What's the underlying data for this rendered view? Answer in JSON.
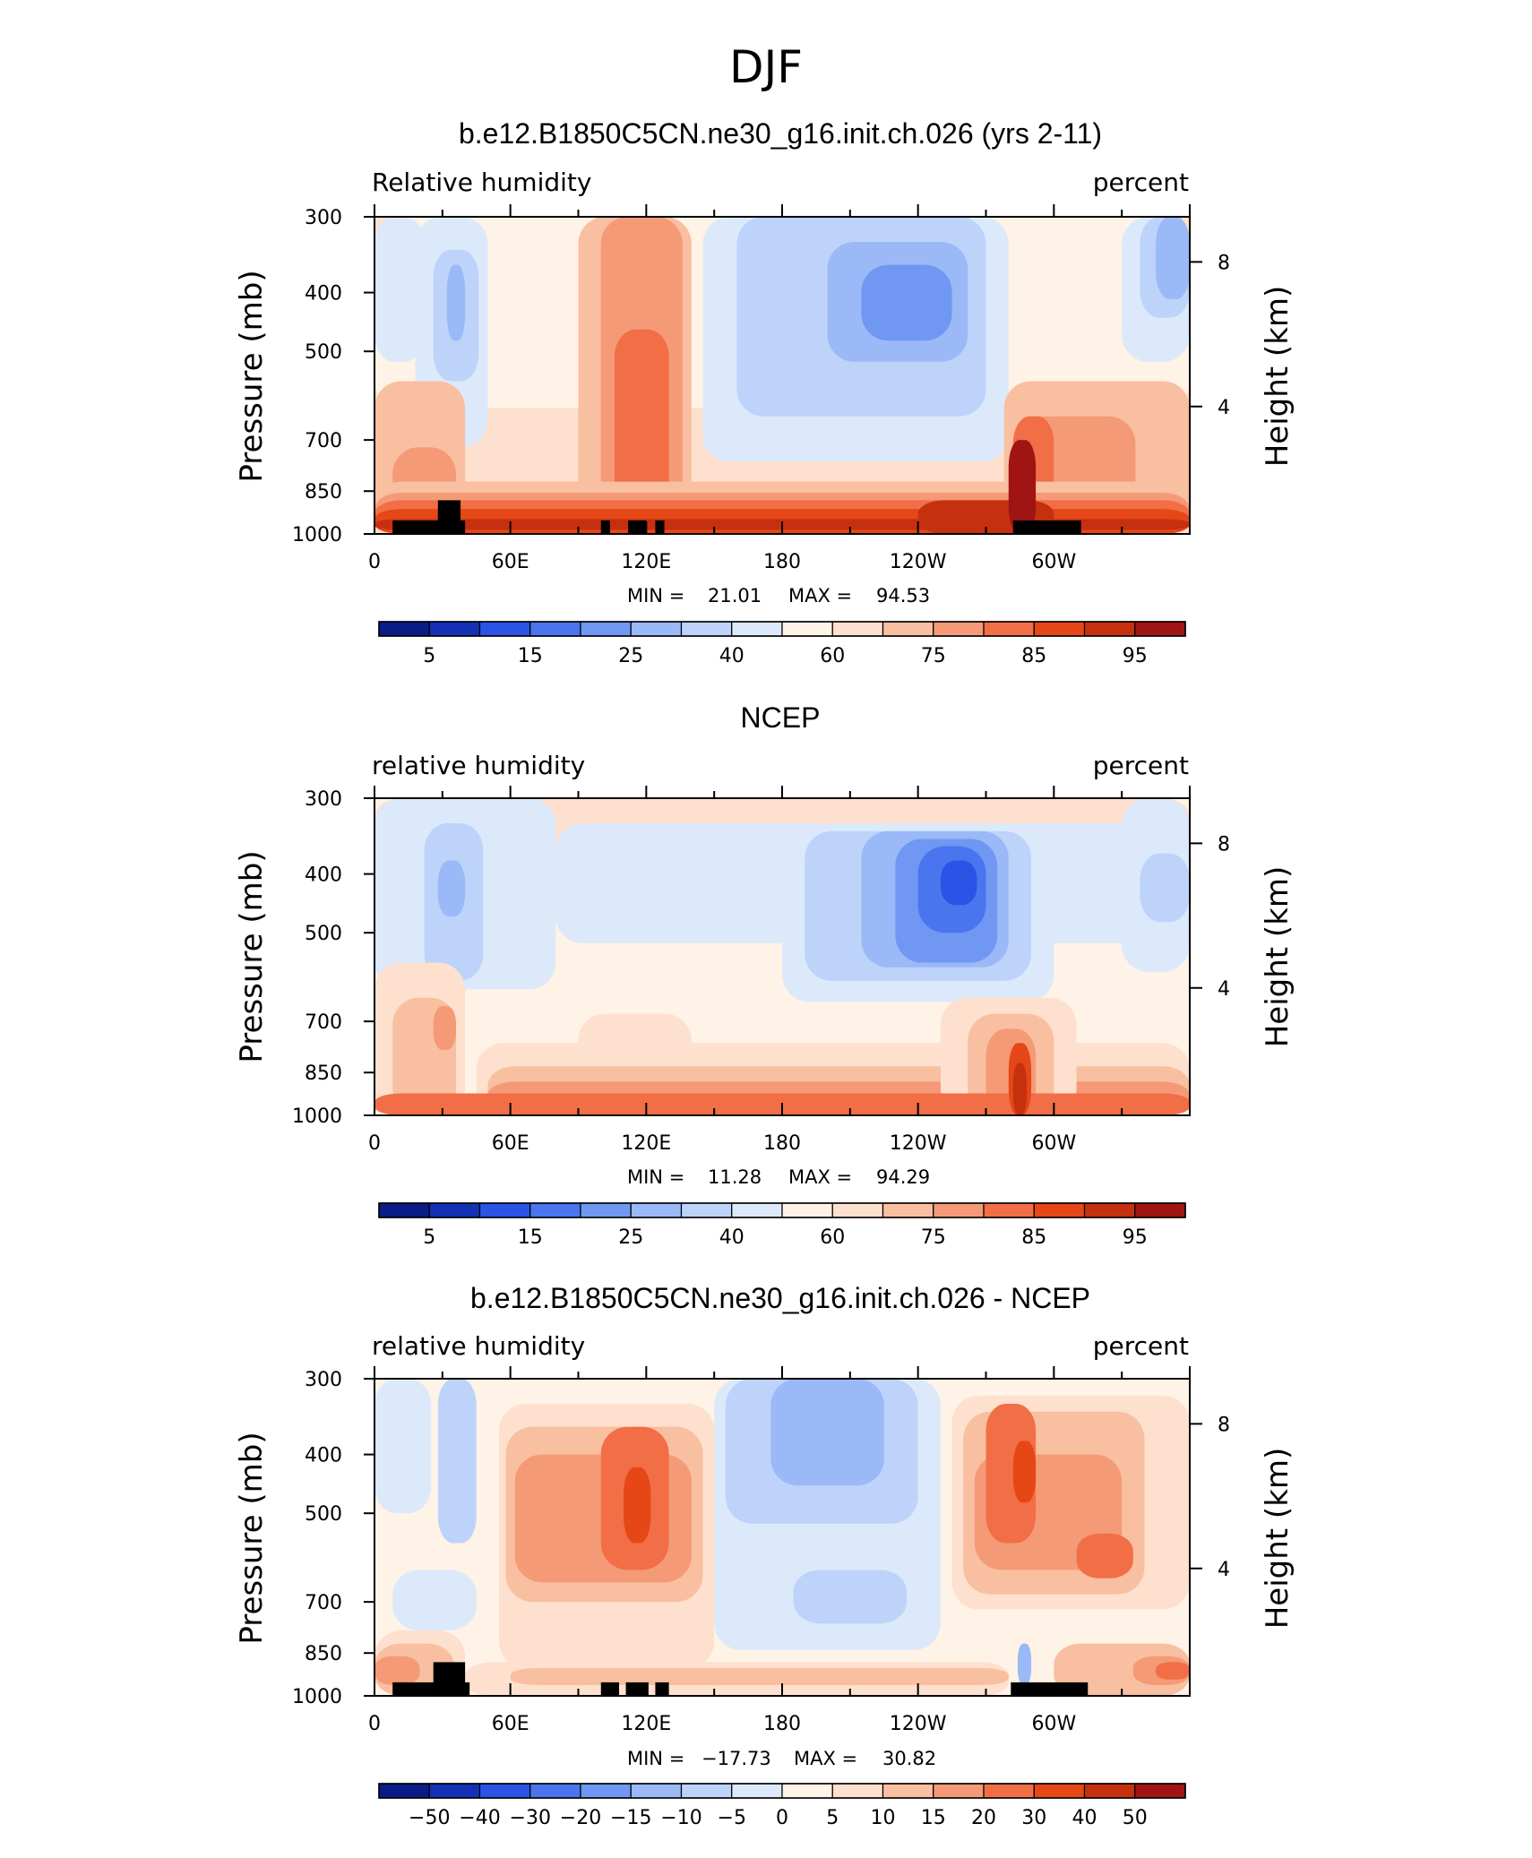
{
  "figure": {
    "season": "DJF"
  },
  "colors": {
    "pos9": "#6b0000",
    "pos8": "#a11414",
    "pos7": "#c5300f",
    "pos6": "#e64717",
    "pos5": "#f26e46",
    "pos4": "#f59a77",
    "pos3": "#f9bfa1",
    "pos2": "#fde0cd",
    "pos1": "#fff2e6",
    "neg1": "#dce9fb",
    "neg2": "#bdd3fa",
    "neg3": "#9ab9f6",
    "neg4": "#7097f2",
    "neg5": "#4a75ee",
    "neg6": "#2b53e6",
    "neg7": "#1431b5",
    "neg8": "#0a1c86",
    "neg9": "#00005a",
    "topo": "#000000"
  },
  "chart_data": [
    {
      "type": "heatmap",
      "title": "b.e12.B1850C5CN.ne30_g16.init.ch.026 (yrs 2-11)",
      "left_label": "Relative humidity",
      "right_label": "percent",
      "ylabel": "Pressure (mb)",
      "y2label": "Height (km)",
      "x_ticks": [
        "0",
        "60E",
        "120E",
        "180",
        "120W",
        "60W"
      ],
      "y_ticks": [
        "300",
        "400",
        "500",
        "700",
        "850",
        "1000"
      ],
      "y2_ticks": [
        "8",
        "4"
      ],
      "min_label": "MIN =",
      "min_value": "21.01",
      "max_label": "MAX =",
      "max_value": "94.53",
      "colorbar_labels": [
        "5",
        "15",
        "25",
        "40",
        "60",
        "75",
        "85",
        "95"
      ],
      "colorbar_colors": [
        "neg8",
        "neg7",
        "neg6",
        "neg5",
        "neg4",
        "neg3",
        "neg2",
        "neg1",
        "pos1",
        "pos2",
        "pos3",
        "pos4",
        "pos5",
        "pos6",
        "pos7",
        "pos8"
      ],
      "dominant_fill": "pos2",
      "features": [
        {
          "fill": "pos1",
          "lon": [
            0,
            360
          ],
          "p": [
            300,
            620
          ]
        },
        {
          "fill": "neg1",
          "lon": [
            0,
            22
          ],
          "p": [
            300,
            520
          ]
        },
        {
          "fill": "neg1",
          "lon": [
            18,
            50
          ],
          "p": [
            300,
            720
          ]
        },
        {
          "fill": "neg2",
          "lon": [
            26,
            46
          ],
          "p": [
            340,
            560
          ]
        },
        {
          "fill": "neg3",
          "lon": [
            32,
            40
          ],
          "p": [
            360,
            480
          ]
        },
        {
          "fill": "neg1",
          "lon": [
            145,
            280
          ],
          "p": [
            300,
            760
          ]
        },
        {
          "fill": "neg2",
          "lon": [
            160,
            270
          ],
          "p": [
            300,
            640
          ]
        },
        {
          "fill": "neg3",
          "lon": [
            200,
            262
          ],
          "p": [
            330,
            520
          ]
        },
        {
          "fill": "neg4",
          "lon": [
            215,
            255
          ],
          "p": [
            360,
            480
          ]
        },
        {
          "fill": "neg1",
          "lon": [
            330,
            360
          ],
          "p": [
            300,
            520
          ]
        },
        {
          "fill": "neg2",
          "lon": [
            338,
            360
          ],
          "p": [
            300,
            440
          ]
        },
        {
          "fill": "neg3",
          "lon": [
            345,
            360
          ],
          "p": [
            300,
            410
          ]
        },
        {
          "fill": "pos3",
          "lon": [
            0,
            40
          ],
          "p": [
            560,
            1000
          ]
        },
        {
          "fill": "pos4",
          "lon": [
            8,
            36
          ],
          "p": [
            720,
            1000
          ]
        },
        {
          "fill": "pos3",
          "lon": [
            90,
            140
          ],
          "p": [
            300,
            1000
          ]
        },
        {
          "fill": "pos4",
          "lon": [
            100,
            136
          ],
          "p": [
            300,
            1000
          ]
        },
        {
          "fill": "pos5",
          "lon": [
            106,
            130
          ],
          "p": [
            460,
            1000
          ]
        },
        {
          "fill": "pos3",
          "lon": [
            278,
            360
          ],
          "p": [
            560,
            1000
          ]
        },
        {
          "fill": "pos4",
          "lon": [
            282,
            336
          ],
          "p": [
            640,
            1000
          ]
        },
        {
          "fill": "pos5",
          "lon": [
            282,
            300
          ],
          "p": [
            640,
            1000
          ]
        },
        {
          "fill": "pos3",
          "lon": [
            0,
            360
          ],
          "p": [
            820,
            1000
          ]
        },
        {
          "fill": "pos4",
          "lon": [
            0,
            360
          ],
          "p": [
            855,
            1000
          ]
        },
        {
          "fill": "pos5",
          "lon": [
            0,
            360
          ],
          "p": [
            880,
            1000
          ]
        },
        {
          "fill": "pos6",
          "lon": [
            0,
            360
          ],
          "p": [
            910,
            1000
          ]
        },
        {
          "fill": "pos7",
          "lon": [
            240,
            300
          ],
          "p": [
            880,
            1000
          ]
        },
        {
          "fill": "pos7",
          "lon": [
            0,
            360
          ],
          "p": [
            945,
            985
          ]
        },
        {
          "fill": "pos8",
          "lon": [
            280,
            292
          ],
          "p": [
            700,
            1000
          ]
        }
      ],
      "topography": [
        {
          "lon": [
            8,
            40
          ],
          "p": [
            950,
            1000
          ]
        },
        {
          "lon": [
            28,
            38
          ],
          "p": [
            880,
            1000
          ]
        },
        {
          "lon": [
            100,
            104
          ],
          "p": [
            950,
            1000
          ]
        },
        {
          "lon": [
            112,
            120
          ],
          "p": [
            950,
            1000
          ]
        },
        {
          "lon": [
            124,
            128
          ],
          "p": [
            950,
            1000
          ]
        },
        {
          "lon": [
            282,
            312
          ],
          "p": [
            950,
            1000
          ]
        }
      ]
    },
    {
      "type": "heatmap",
      "title": "NCEP",
      "left_label": "relative humidity",
      "right_label": "percent",
      "ylabel": "Pressure (mb)",
      "y2label": "Height (km)",
      "x_ticks": [
        "0",
        "60E",
        "120E",
        "180",
        "120W",
        "60W"
      ],
      "y_ticks": [
        "300",
        "400",
        "500",
        "700",
        "850",
        "1000"
      ],
      "y2_ticks": [
        "8",
        "4"
      ],
      "min_label": "MIN =",
      "min_value": "11.28",
      "max_label": "MAX =",
      "max_value": "94.29",
      "colorbar_labels": [
        "5",
        "15",
        "25",
        "40",
        "60",
        "75",
        "85",
        "95"
      ],
      "colorbar_colors": [
        "neg8",
        "neg7",
        "neg6",
        "neg5",
        "neg4",
        "neg3",
        "neg2",
        "neg1",
        "pos1",
        "pos2",
        "pos3",
        "pos4",
        "pos5",
        "pos6",
        "pos7",
        "pos8"
      ],
      "dominant_fill": "pos1",
      "features": [
        {
          "fill": "pos2",
          "lon": [
            0,
            360
          ],
          "p": [
            300,
            360
          ]
        },
        {
          "fill": "neg1",
          "lon": [
            0,
            80
          ],
          "p": [
            300,
            620
          ]
        },
        {
          "fill": "neg2",
          "lon": [
            22,
            48
          ],
          "p": [
            330,
            600
          ]
        },
        {
          "fill": "neg3",
          "lon": [
            28,
            40
          ],
          "p": [
            380,
            470
          ]
        },
        {
          "fill": "neg1",
          "lon": [
            80,
            360
          ],
          "p": [
            330,
            520
          ]
        },
        {
          "fill": "neg1",
          "lon": [
            180,
            300
          ],
          "p": [
            330,
            650
          ]
        },
        {
          "fill": "neg2",
          "lon": [
            190,
            290
          ],
          "p": [
            340,
            600
          ]
        },
        {
          "fill": "neg3",
          "lon": [
            215,
            280
          ],
          "p": [
            340,
            570
          ]
        },
        {
          "fill": "neg4",
          "lon": [
            230,
            275
          ],
          "p": [
            350,
            560
          ]
        },
        {
          "fill": "neg5",
          "lon": [
            240,
            270
          ],
          "p": [
            360,
            500
          ]
        },
        {
          "fill": "neg6",
          "lon": [
            250,
            266
          ],
          "p": [
            380,
            450
          ]
        },
        {
          "fill": "neg1",
          "lon": [
            330,
            360
          ],
          "p": [
            300,
            580
          ]
        },
        {
          "fill": "neg2",
          "lon": [
            338,
            360
          ],
          "p": [
            370,
            480
          ]
        },
        {
          "fill": "pos2",
          "lon": [
            0,
            40
          ],
          "p": [
            560,
            1000
          ]
        },
        {
          "fill": "pos3",
          "lon": [
            8,
            36
          ],
          "p": [
            640,
            1000
          ]
        },
        {
          "fill": "pos4",
          "lon": [
            26,
            36
          ],
          "p": [
            660,
            780
          ]
        },
        {
          "fill": "pos2",
          "lon": [
            45,
            360
          ],
          "p": [
            760,
            1000
          ]
        },
        {
          "fill": "pos2",
          "lon": [
            90,
            140
          ],
          "p": [
            680,
            1000
          ]
        },
        {
          "fill": "pos3",
          "lon": [
            50,
            360
          ],
          "p": [
            830,
            1000
          ]
        },
        {
          "fill": "pos4",
          "lon": [
            50,
            360
          ],
          "p": [
            880,
            1000
          ]
        },
        {
          "fill": "pos2",
          "lon": [
            250,
            310
          ],
          "p": [
            640,
            1000
          ]
        },
        {
          "fill": "pos3",
          "lon": [
            262,
            300
          ],
          "p": [
            680,
            1000
          ]
        },
        {
          "fill": "pos4",
          "lon": [
            270,
            292
          ],
          "p": [
            720,
            1000
          ]
        },
        {
          "fill": "pos5",
          "lon": [
            0,
            360
          ],
          "p": [
            920,
            1000
          ]
        },
        {
          "fill": "pos6",
          "lon": [
            280,
            290
          ],
          "p": [
            760,
            1000
          ]
        },
        {
          "fill": "pos7",
          "lon": [
            282,
            288
          ],
          "p": [
            820,
            1000
          ]
        }
      ],
      "topography": []
    },
    {
      "type": "heatmap",
      "title": "b.e12.B1850C5CN.ne30_g16.init.ch.026 - NCEP",
      "left_label": "relative humidity",
      "right_label": "percent",
      "ylabel": "Pressure (mb)",
      "y2label": "Height (km)",
      "x_ticks": [
        "0",
        "60E",
        "120E",
        "180",
        "120W",
        "60W"
      ],
      "y_ticks": [
        "300",
        "400",
        "500",
        "700",
        "850",
        "1000"
      ],
      "y2_ticks": [
        "8",
        "4"
      ],
      "min_label": "MIN =",
      "min_value": "−17.73",
      "max_label": "MAX =",
      "max_value": "30.82",
      "colorbar_labels": [
        "−50",
        "−40",
        "−30",
        "−20",
        "−15",
        "−10",
        "−5",
        "0",
        "5",
        "10",
        "15",
        "20",
        "30",
        "40",
        "50"
      ],
      "colorbar_colors": [
        "neg8",
        "neg7",
        "neg6",
        "neg5",
        "neg4",
        "neg3",
        "neg2",
        "neg1",
        "pos1",
        "pos2",
        "pos3",
        "pos4",
        "pos5",
        "pos6",
        "pos7",
        "pos8"
      ],
      "dominant_fill": "pos1",
      "features": [
        {
          "fill": "neg1",
          "lon": [
            0,
            25
          ],
          "p": [
            300,
            500
          ]
        },
        {
          "fill": "neg1",
          "lon": [
            8,
            45
          ],
          "p": [
            620,
            780
          ]
        },
        {
          "fill": "neg2",
          "lon": [
            28,
            45
          ],
          "p": [
            300,
            560
          ]
        },
        {
          "fill": "neg1",
          "lon": [
            150,
            250
          ],
          "p": [
            300,
            840
          ]
        },
        {
          "fill": "neg2",
          "lon": [
            155,
            240
          ],
          "p": [
            300,
            520
          ]
        },
        {
          "fill": "neg3",
          "lon": [
            175,
            225
          ],
          "p": [
            300,
            450
          ]
        },
        {
          "fill": "neg2",
          "lon": [
            185,
            235
          ],
          "p": [
            620,
            760
          ]
        },
        {
          "fill": "pos2",
          "lon": [
            55,
            150
          ],
          "p": [
            330,
            900
          ]
        },
        {
          "fill": "pos3",
          "lon": [
            58,
            145
          ],
          "p": [
            360,
            700
          ]
        },
        {
          "fill": "pos4",
          "lon": [
            62,
            140
          ],
          "p": [
            400,
            650
          ]
        },
        {
          "fill": "pos5",
          "lon": [
            100,
            130
          ],
          "p": [
            360,
            620
          ]
        },
        {
          "fill": "pos6",
          "lon": [
            110,
            122
          ],
          "p": [
            420,
            560
          ]
        },
        {
          "fill": "pos2",
          "lon": [
            255,
            360
          ],
          "p": [
            320,
            720
          ]
        },
        {
          "fill": "pos3",
          "lon": [
            260,
            340
          ],
          "p": [
            340,
            680
          ]
        },
        {
          "fill": "pos4",
          "lon": [
            265,
            330
          ],
          "p": [
            400,
            620
          ]
        },
        {
          "fill": "pos5",
          "lon": [
            270,
            292
          ],
          "p": [
            330,
            560
          ]
        },
        {
          "fill": "pos6",
          "lon": [
            282,
            292
          ],
          "p": [
            380,
            480
          ]
        },
        {
          "fill": "pos5",
          "lon": [
            310,
            335
          ],
          "p": [
            540,
            640
          ]
        },
        {
          "fill": "pos2",
          "lon": [
            0,
            40
          ],
          "p": [
            780,
            1000
          ]
        },
        {
          "fill": "pos3",
          "lon": [
            0,
            35
          ],
          "p": [
            820,
            1000
          ]
        },
        {
          "fill": "pos4",
          "lon": [
            0,
            20
          ],
          "p": [
            860,
            960
          ]
        },
        {
          "fill": "pos2",
          "lon": [
            40,
            280
          ],
          "p": [
            880,
            1000
          ]
        },
        {
          "fill": "pos3",
          "lon": [
            60,
            280
          ],
          "p": [
            900,
            960
          ]
        },
        {
          "fill": "pos3",
          "lon": [
            300,
            360
          ],
          "p": [
            820,
            1000
          ]
        },
        {
          "fill": "pos4",
          "lon": [
            335,
            360
          ],
          "p": [
            860,
            960
          ]
        },
        {
          "fill": "pos5",
          "lon": [
            345,
            360
          ],
          "p": [
            880,
            940
          ]
        },
        {
          "fill": "neg3",
          "lon": [
            284,
            290
          ],
          "p": [
            820,
            960
          ]
        }
      ],
      "topography": [
        {
          "lon": [
            8,
            42
          ],
          "p": [
            950,
            1000
          ]
        },
        {
          "lon": [
            26,
            40
          ],
          "p": [
            880,
            1000
          ]
        },
        {
          "lon": [
            100,
            108
          ],
          "p": [
            950,
            1000
          ]
        },
        {
          "lon": [
            111,
            121
          ],
          "p": [
            950,
            1000
          ]
        },
        {
          "lon": [
            124,
            130
          ],
          "p": [
            950,
            1000
          ]
        },
        {
          "lon": [
            281,
            315
          ],
          "p": [
            950,
            1000
          ]
        }
      ]
    }
  ]
}
